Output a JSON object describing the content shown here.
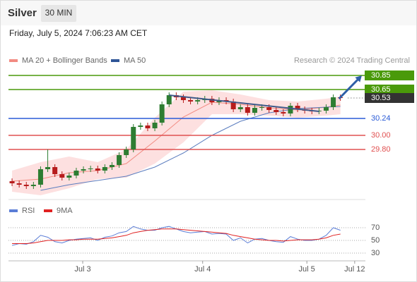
{
  "header": {
    "title": "Silver",
    "timeframe": "30 MIN",
    "timestamp": "Friday, July 5, 2024 7:06:23 AM CET"
  },
  "chart_data": {
    "type": "candlestick",
    "legend": [
      {
        "name": "MA 20 + Bollinger Bands",
        "color": "#f28b82"
      },
      {
        "name": "MA 50",
        "color": "#2f5597"
      }
    ],
    "credit": "Research © 2024 Trading Central",
    "up_color": "#2e7d32",
    "down_color": "#b71c1c",
    "xlim": [
      -0.5,
      49.5
    ],
    "xticks": [
      {
        "value": 9.9,
        "label": "Jul 3"
      },
      {
        "value": 26.7,
        "label": "Jul 4"
      },
      {
        "value": 41.3,
        "label": "Jul 5"
      },
      {
        "value": 48,
        "label": "Jul 12"
      }
    ],
    "ylim": [
      29.2,
      31.0
    ],
    "open": [
      29.35,
      29.32,
      29.3,
      29.28,
      29.3,
      29.52,
      29.55,
      29.45,
      29.4,
      29.43,
      29.5,
      29.52,
      29.53,
      29.5,
      29.55,
      29.58,
      29.72,
      29.8,
      30.12,
      30.14,
      30.1,
      30.18,
      30.44,
      30.57,
      30.54,
      30.5,
      30.48,
      30.5,
      30.52,
      30.47,
      30.5,
      30.48,
      30.37,
      30.4,
      30.32,
      30.39,
      30.4,
      30.36,
      30.33,
      30.31,
      30.42,
      30.37,
      30.35,
      30.34,
      30.35,
      30.4,
      30.54
    ],
    "high": [
      29.39,
      29.36,
      29.34,
      29.34,
      29.56,
      29.8,
      29.59,
      29.49,
      29.47,
      29.54,
      29.56,
      29.57,
      29.57,
      29.59,
      29.62,
      29.76,
      29.84,
      30.16,
      30.18,
      30.18,
      30.22,
      30.48,
      30.61,
      30.61,
      30.58,
      30.54,
      30.54,
      30.56,
      30.56,
      30.54,
      30.54,
      30.52,
      30.44,
      30.44,
      30.43,
      30.44,
      30.44,
      30.4,
      30.37,
      30.46,
      30.46,
      30.41,
      30.39,
      30.39,
      30.44,
      30.58,
      30.58
    ],
    "low": [
      29.28,
      29.26,
      29.24,
      29.24,
      29.26,
      29.48,
      29.41,
      29.36,
      29.36,
      29.39,
      29.46,
      29.48,
      29.46,
      29.46,
      29.51,
      29.54,
      29.68,
      29.76,
      30.08,
      30.06,
      30.06,
      30.14,
      30.4,
      30.5,
      30.46,
      30.44,
      30.44,
      30.46,
      30.43,
      30.43,
      30.44,
      30.33,
      30.33,
      30.28,
      30.28,
      30.35,
      30.32,
      30.29,
      30.27,
      30.27,
      30.33,
      30.31,
      30.3,
      30.3,
      30.31,
      30.36,
      30.49
    ],
    "close": [
      29.32,
      29.3,
      29.28,
      29.3,
      29.52,
      29.55,
      29.45,
      29.4,
      29.43,
      29.5,
      29.52,
      29.53,
      29.5,
      29.55,
      29.58,
      29.72,
      29.8,
      30.12,
      30.14,
      30.1,
      30.18,
      30.44,
      30.57,
      30.54,
      30.5,
      30.48,
      30.5,
      30.52,
      30.47,
      30.5,
      30.48,
      30.37,
      30.4,
      30.32,
      30.39,
      30.4,
      30.36,
      30.33,
      30.31,
      30.42,
      30.37,
      30.35,
      30.34,
      30.35,
      30.4,
      30.54,
      30.53
    ],
    "bollinger": {
      "x": [
        0,
        4,
        8,
        12,
        16,
        20,
        24,
        28,
        32,
        36,
        40,
        44,
        46
      ],
      "upper": [
        29.5,
        29.62,
        29.7,
        29.62,
        29.8,
        30.25,
        30.62,
        30.64,
        30.58,
        30.5,
        30.48,
        30.52,
        30.55
      ],
      "ma20": [
        29.35,
        29.38,
        29.47,
        29.5,
        29.6,
        29.92,
        30.26,
        30.47,
        30.44,
        30.39,
        30.36,
        30.4,
        30.43
      ],
      "lower": [
        29.2,
        29.15,
        29.25,
        29.38,
        29.4,
        29.6,
        29.9,
        30.3,
        30.3,
        30.28,
        30.25,
        30.28,
        30.3
      ],
      "fill": "#fde0e0"
    },
    "ma50": {
      "x": [
        4,
        8,
        12,
        16,
        20,
        24,
        28,
        32,
        36,
        40,
        44,
        46
      ],
      "values": [
        29.22,
        29.3,
        29.36,
        29.42,
        29.55,
        29.75,
        30.0,
        30.2,
        30.32,
        30.38,
        30.4,
        30.41
      ],
      "color": "#5b7dbf"
    },
    "trendline": {
      "x": [
        22,
        43
      ],
      "y": [
        30.57,
        30.34
      ],
      "color": "#3f5a8a"
    },
    "arrow": {
      "x": [
        45.8,
        49
      ],
      "y": [
        30.52,
        30.85
      ],
      "color": "#2f5fa7"
    },
    "levels": [
      {
        "value": 30.85,
        "color": "#4a9a0a",
        "boxed": true
      },
      {
        "value": 30.65,
        "color": "#4a9a0a",
        "boxed": true
      },
      {
        "value": 30.53,
        "color": "#333333",
        "boxed": true,
        "dotted": true
      },
      {
        "value": 30.24,
        "color": "#2a5bd7",
        "boxed": false
      },
      {
        "value": 30,
        "label": "30.00",
        "color": "#e05050",
        "boxed": false
      },
      {
        "value": 29.8,
        "label": "29.80",
        "color": "#e05050",
        "boxed": false
      }
    ],
    "rsi": {
      "ylim": [
        20,
        82
      ],
      "yticks": [
        30,
        50,
        70
      ],
      "series": [
        {
          "name": "RSI",
          "color": "#5b7dd6",
          "values": [
            42,
            45,
            44,
            48,
            58,
            55,
            48,
            46,
            50,
            52,
            53,
            54,
            50,
            55,
            57,
            62,
            64,
            72,
            68,
            66,
            66,
            70,
            72,
            68,
            64,
            62,
            63,
            64,
            60,
            61,
            60,
            50,
            54,
            46,
            52,
            53,
            50,
            48,
            47,
            56,
            52,
            50,
            50,
            52,
            58,
            70,
            66
          ]
        },
        {
          "name": "9MA",
          "color": "#e02020",
          "values": [
            45,
            45,
            45,
            46,
            48,
            50,
            50,
            50,
            51,
            51,
            52,
            52,
            52,
            53,
            54,
            56,
            58,
            62,
            64,
            66,
            67,
            68,
            68,
            68,
            67,
            66,
            65,
            64,
            63,
            62,
            61,
            58,
            56,
            54,
            52,
            51,
            50,
            50,
            49,
            50,
            51,
            51,
            51,
            52,
            54,
            58,
            60
          ]
        }
      ]
    }
  }
}
